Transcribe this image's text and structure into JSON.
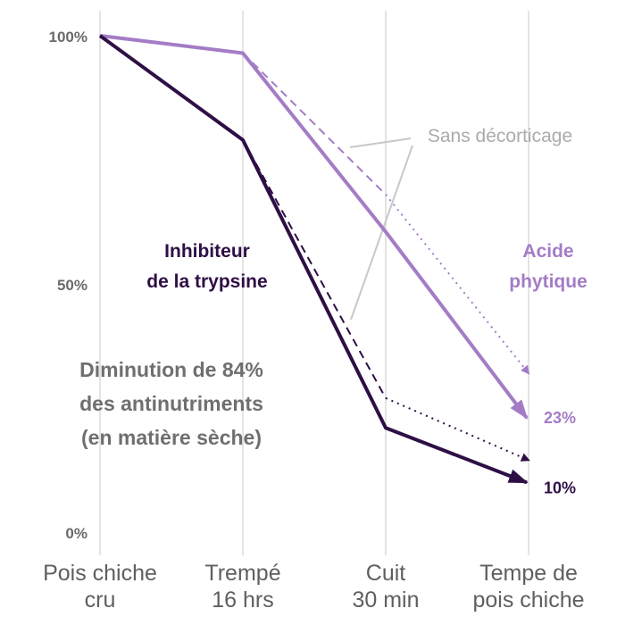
{
  "chart_data": {
    "type": "line",
    "categories": [
      "Pois chiche cru",
      "Trempé 16 hrs",
      "Cuit 30 min",
      "Tempe de pois chiche"
    ],
    "categories_wrapped": [
      [
        "Pois chiche",
        "cru"
      ],
      [
        "Trempé",
        "16 hrs"
      ],
      [
        "Cuit",
        "30 min"
      ],
      [
        "Tempe de",
        "pois chiche"
      ]
    ],
    "yticks": [
      {
        "value": 100,
        "label": "100%"
      },
      {
        "value": 50,
        "label": "50%"
      },
      {
        "value": 0,
        "label": "0%"
      }
    ],
    "ylim": [
      0,
      100
    ],
    "series": [
      {
        "name": "Acide phytique",
        "name_lines": [
          "Acide",
          "phytique"
        ],
        "color": "#a47cc6",
        "values": [
          100,
          96.5,
          60.5,
          23
        ],
        "end_label": "23%"
      },
      {
        "name": "Inhibiteur de la trypsine",
        "name_lines": [
          "Inhibiteur",
          "de la trypsine"
        ],
        "color": "#2e0f45",
        "values": [
          100,
          79,
          21,
          10
        ],
        "end_label": "10%"
      }
    ],
    "no_dehulling_series": [
      {
        "of": "Acide phytique",
        "color": "#a47cc6",
        "values": [
          96.5,
          68,
          32
        ]
      },
      {
        "of": "Inhibiteur de la trypsine",
        "color": "#2e0f45",
        "values": [
          79,
          27,
          14.5
        ]
      }
    ],
    "annotations": {
      "no_dehulling": "Sans décorticage",
      "summary": [
        "Diminution de 84%",
        "des antinutriments",
        "(en matière sèche)"
      ]
    },
    "grid": {
      "vertical": true,
      "horizontal": false
    }
  }
}
